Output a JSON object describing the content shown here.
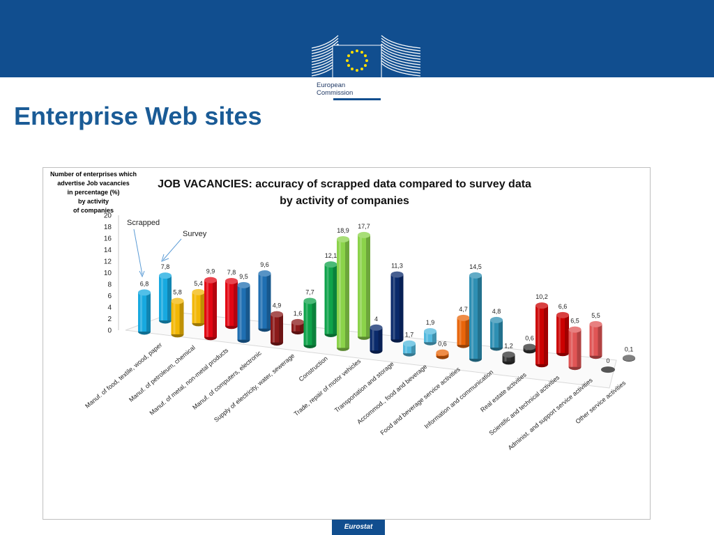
{
  "header": {
    "logo_line1": "European",
    "logo_line2": "Commission"
  },
  "page_title": "Enterprise Web sites",
  "footer": {
    "label": "Eurostat"
  },
  "chart_data": {
    "type": "bar",
    "title_line1": "JOB VACANCIES:  accuracy of scrapped data compared to survey data",
    "title_line2": "by activity of companies",
    "ylabel_lines": [
      "Number of enterprises  which",
      "advertise Job vacancies",
      "in percentage (%)",
      "by activity",
      "of companies"
    ],
    "ylim": [
      0,
      20
    ],
    "yticks": [
      0,
      2,
      4,
      6,
      8,
      10,
      12,
      14,
      16,
      18,
      20
    ],
    "annotations": [
      {
        "text": "Scrapped",
        "points_to": "scrapped bar of first category"
      },
      {
        "text": "Survey",
        "points_to": "survey bar of first category"
      }
    ],
    "categories": [
      "Manuf. of food, textile, wood, paper",
      "Manuf. of petroleum, chemical",
      "Manuf. of metal, non-metal products",
      "Manuf. of computers, electronic",
      "Supply of electricity, water, sewerage",
      "Construction",
      "Trade, repair of motor vehicles",
      "Transportation and storage",
      "Accommod., food and beverage",
      "Food and beverage service activities",
      "Information and communication",
      "Real estate activities",
      "Scientific and technical activities",
      "Administ. and support service activities",
      "Other service activities"
    ],
    "series": [
      {
        "values": [
          6.8,
          5.8,
          9.9,
          9.5,
          4.9,
          7.7,
          18.9,
          4,
          1.7,
          0.6,
          14.5,
          1.2,
          10.2,
          6.5,
          0
        ]
      },
      {
        "values": [
          7.8,
          5.4,
          7.8,
          9.6,
          1.6,
          12.1,
          17.7,
          11.3,
          1.9,
          4.7,
          4.8,
          0.6,
          6.6,
          5.5,
          0.1
        ]
      }
    ],
    "value_labels": {
      "series0": [
        "6,8",
        "5,8",
        "9,9",
        "9,5",
        "4,9",
        "7,7",
        "18,9",
        "4",
        "1,7",
        "0,6",
        "14,5",
        "1,2",
        "10,2",
        "6,5",
        "0"
      ],
      "series1": [
        "7,8",
        "5,4",
        "7,8",
        "9,6",
        "1,6",
        "12,1",
        "17,7",
        "11,3",
        "1,9",
        "4,7",
        "4,8",
        "0,6",
        "6,6",
        "5,5",
        "0,1"
      ]
    },
    "category_colors": [
      [
        "#17a9e0",
        "#17a9e0"
      ],
      [
        "#f2b705",
        "#f2b705"
      ],
      [
        "#e30613",
        "#e30613"
      ],
      [
        "#1f6fb2",
        "#1f6fb2"
      ],
      [
        "#8b1a1a",
        "#8b1a1a"
      ],
      [
        "#0ea34a",
        "#0ea34a"
      ],
      [
        "#8bd34a",
        "#8bd34a"
      ],
      [
        "#0a2a6b",
        "#0a2a6b"
      ],
      [
        "#53b9de",
        "#53b9de"
      ],
      [
        "#e8650a",
        "#e8650a"
      ],
      [
        "#2e8fb3",
        "#2e8fb3"
      ],
      [
        "#333333",
        "#333333"
      ],
      [
        "#cc0000",
        "#cc0000"
      ],
      [
        "#e05555",
        "#e05555"
      ],
      [
        "#555555",
        "#555555"
      ]
    ],
    "grid": false
  }
}
